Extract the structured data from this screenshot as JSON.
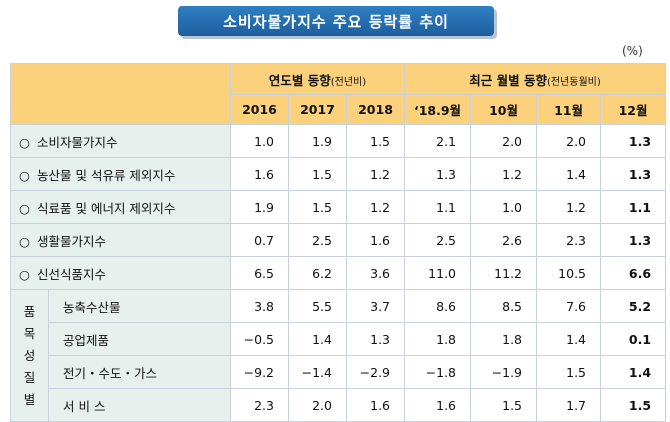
{
  "title": "소비자물가지수 주요 등락률 추이",
  "unit": "(%)",
  "header": {
    "group_annual": "연도별 동향",
    "group_annual_note": "(전년비)",
    "group_monthly": "최근 월별 동향",
    "group_monthly_note": "(전년동월비)",
    "columns": [
      "2016",
      "2017",
      "2018",
      "‘18.9월",
      "10월",
      "11월",
      "12월"
    ]
  },
  "rows": [
    {
      "label": "소비자물가지수",
      "values": [
        "1.0",
        "1.9",
        "1.5",
        "2.1",
        "2.0",
        "2.0",
        "1.3"
      ]
    },
    {
      "label": "농산물 및 석유류 제외지수",
      "values": [
        "1.6",
        "1.5",
        "1.2",
        "1.3",
        "1.2",
        "1.4",
        "1.3"
      ]
    },
    {
      "label": "식료품 및 에너지 제외지수",
      "values": [
        "1.9",
        "1.5",
        "1.2",
        "1.1",
        "1.0",
        "1.2",
        "1.1"
      ]
    },
    {
      "label": "생활물가지수",
      "values": [
        "0.7",
        "2.5",
        "1.6",
        "2.5",
        "2.6",
        "2.3",
        "1.3"
      ]
    },
    {
      "label": "신선식품지수",
      "values": [
        "6.5",
        "6.2",
        "3.6",
        "11.0",
        "11.2",
        "10.5",
        "6.6"
      ]
    }
  ],
  "bullet": "○",
  "group_label": [
    "품",
    "목",
    "성",
    "질",
    "별"
  ],
  "group_rows": [
    {
      "label": "농축수산물",
      "values": [
        "3.8",
        "5.5",
        "3.7",
        "8.6",
        "8.5",
        "7.6",
        "5.2"
      ]
    },
    {
      "label": "공업제품",
      "values": [
        "−0.5",
        "1.4",
        "1.3",
        "1.8",
        "1.8",
        "1.4",
        "0.1"
      ]
    },
    {
      "label": "전기・수도・가스",
      "values": [
        "−9.2",
        "−1.4",
        "−2.9",
        "−1.8",
        "−1.9",
        "1.5",
        "1.4"
      ]
    },
    {
      "label": "서 비 스",
      "values": [
        "2.3",
        "2.0",
        "1.6",
        "1.6",
        "1.5",
        "1.7",
        "1.5"
      ]
    }
  ]
}
